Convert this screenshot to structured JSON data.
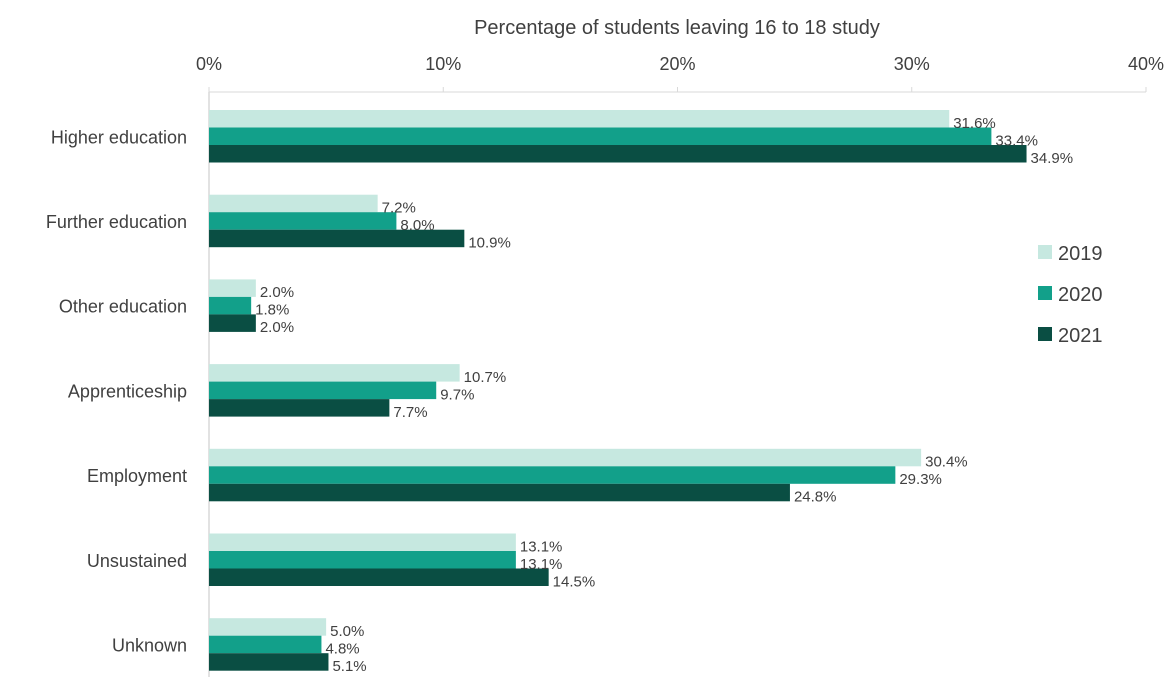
{
  "chart_data": {
    "type": "bar",
    "orientation": "horizontal",
    "xlabel": "Percentage of students leaving 16 to 18 study",
    "xlim": [
      0,
      40
    ],
    "xticks": [
      "0%",
      "10%",
      "20%",
      "30%",
      "40%"
    ],
    "tick_values": [
      0,
      10,
      20,
      30,
      40
    ],
    "categories": [
      "Higher education",
      "Further education",
      "Other education",
      "Apprenticeship",
      "Employment",
      "Unsustained",
      "Unknown"
    ],
    "series": [
      {
        "name": "2019",
        "color": "#c6e8e0",
        "values": [
          31.6,
          7.2,
          2.0,
          10.7,
          30.4,
          13.1,
          5.0
        ],
        "labels": [
          "31.6%",
          "7.2%",
          "2.0%",
          "10.7%",
          "30.4%",
          "13.1%",
          "5.0%"
        ]
      },
      {
        "name": "2020",
        "color": "#12a08a",
        "values": [
          33.4,
          8.0,
          1.8,
          9.7,
          29.3,
          13.1,
          4.8
        ],
        "labels": [
          "33.4%",
          "8.0%",
          "1.8%",
          "9.7%",
          "29.3%",
          "13.1%",
          "4.8%"
        ]
      },
      {
        "name": "2021",
        "color": "#0a4e43",
        "values": [
          34.9,
          10.9,
          2.0,
          7.7,
          24.8,
          14.5,
          5.1
        ],
        "labels": [
          "34.9%",
          "10.9%",
          "2.0%",
          "7.7%",
          "24.8%",
          "14.5%",
          "5.1%"
        ]
      }
    ],
    "grid": false,
    "legend_position": "right"
  }
}
